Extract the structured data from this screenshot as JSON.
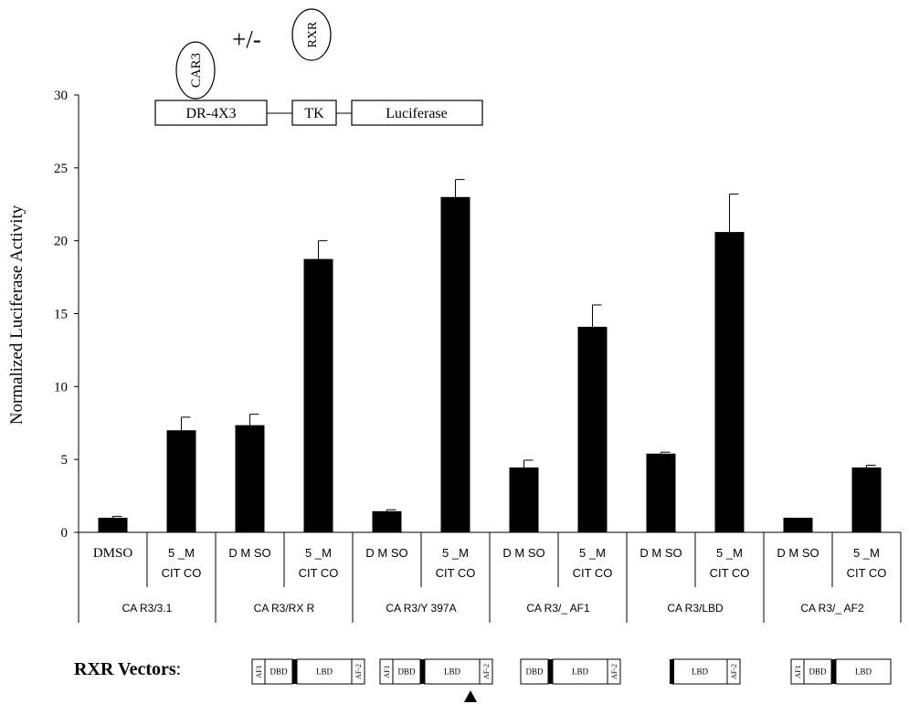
{
  "chart_data": {
    "type": "bar",
    "ylabel": "Normalized Luciferase Activity",
    "ylim": [
      0,
      30
    ],
    "yticks": [
      0,
      5,
      10,
      15,
      20,
      25,
      30
    ],
    "groups": [
      {
        "label": "CA R3/3.1",
        "bars": [
          {
            "label_lines": [
              "DMSO"
            ],
            "value": 1.0,
            "error": 0.1
          },
          {
            "label_lines": [
              "5 _M",
              "CIT CO"
            ],
            "value": 7.0,
            "error": 0.9
          }
        ]
      },
      {
        "label": "CA R3/RX R",
        "bars": [
          {
            "label_lines": [
              "D M SO"
            ],
            "value": 7.35,
            "error": 0.75
          },
          {
            "label_lines": [
              "5 _M",
              "CIT CO"
            ],
            "value": 18.75,
            "error": 1.25
          }
        ]
      },
      {
        "label": "CA R3/Y 397A",
        "bars": [
          {
            "label_lines": [
              "D M SO"
            ],
            "value": 1.45,
            "error": 0.1
          },
          {
            "label_lines": [
              "5 _M",
              "CIT CO"
            ],
            "value": 23.0,
            "error": 1.2
          }
        ]
      },
      {
        "label": "CA R3/_ AF1",
        "bars": [
          {
            "label_lines": [
              "D M SO"
            ],
            "value": 4.45,
            "error": 0.5
          },
          {
            "label_lines": [
              "5 _M",
              "CIT CO"
            ],
            "value": 14.1,
            "error": 1.5
          }
        ]
      },
      {
        "label": "CA R3/LBD",
        "bars": [
          {
            "label_lines": [
              "D M SO"
            ],
            "value": 5.4,
            "error": 0.1
          },
          {
            "label_lines": [
              "5 _M",
              "CIT CO"
            ],
            "value": 20.6,
            "error": 2.6
          }
        ]
      },
      {
        "label": "CA R3/_ AF2",
        "bars": [
          {
            "label_lines": [
              "D M SO"
            ],
            "value": 1.0,
            "error": 0.0
          },
          {
            "label_lines": [
              "5 _M",
              "CIT CO"
            ],
            "value": 4.45,
            "error": 0.15
          }
        ]
      }
    ],
    "bar_color": "#000000"
  },
  "construct": {
    "car3": "CAR3",
    "rxr": "RXR",
    "plusminus": "+/-",
    "dr4": "DR-4X3",
    "tk": "TK",
    "luciferase": "Luciferase"
  },
  "rxr_vectors": {
    "label": "RXR Vectors",
    "colon": ":",
    "vectors": [
      {
        "name": "full-length",
        "domains": [
          "AF1",
          "DBD",
          "LBD",
          "AF-2"
        ]
      },
      {
        "name": "y397a",
        "domains": [
          "AF1",
          "DBD",
          "LBD",
          "AF-2"
        ],
        "marker": true
      },
      {
        "name": "delta-af1",
        "domains": [
          "DBD",
          "LBD",
          "AF-2"
        ]
      },
      {
        "name": "lbd",
        "domains": [
          "LBD",
          "AF-2"
        ]
      },
      {
        "name": "delta-af2",
        "domains": [
          "AF1",
          "DBD",
          "LBD"
        ]
      }
    ]
  }
}
